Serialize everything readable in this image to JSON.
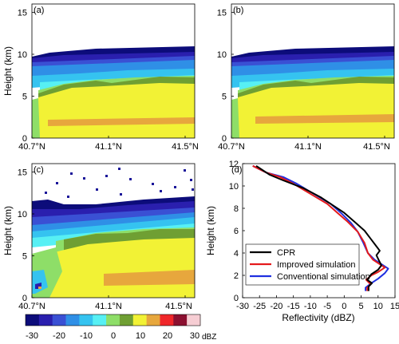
{
  "panels": {
    "a": {
      "label": "(a)"
    },
    "b": {
      "label": "(b)"
    },
    "c": {
      "label": "(c)"
    },
    "d": {
      "label": "(d)"
    }
  },
  "colorbar": {
    "ticks": [
      "-30",
      "-20",
      "-10",
      "0",
      "10",
      "20",
      "30"
    ],
    "unit": "dBZ",
    "levels": [
      -30,
      -25,
      -20,
      -15,
      -10,
      -5,
      0,
      5,
      10,
      15,
      20,
      25,
      30
    ],
    "colors": [
      "#0c0c7a",
      "#2a1fae",
      "#3a50d4",
      "#2f8fe6",
      "#35c3f0",
      "#57f0f4",
      "#8ede68",
      "#6f9f33",
      "#f2f235",
      "#e7a73d",
      "#f0272a",
      "#8b1030",
      "#f6cdd3"
    ]
  },
  "chart_data": [
    {
      "panel": "(a)",
      "type": "heatmap",
      "xlabel": "",
      "ylabel": "Height (km)",
      "xticks": [
        "40.7°N",
        "41.1°N",
        "41.5°N"
      ],
      "yticks": [
        "0",
        "5",
        "10",
        "15"
      ],
      "xlim": [
        40.7,
        41.55
      ],
      "ylim": [
        0,
        16
      ]
    },
    {
      "panel": "(b)",
      "type": "heatmap",
      "xlabel": "",
      "ylabel": "",
      "xticks": [
        "40.7°N",
        "41.1°N",
        "41.5°N"
      ],
      "yticks": [
        "0",
        "5",
        "10",
        "15"
      ],
      "xlim": [
        40.7,
        41.55
      ],
      "ylim": [
        0,
        16
      ]
    },
    {
      "panel": "(c)",
      "type": "heatmap",
      "xlabel": "",
      "ylabel": "Height (km)",
      "xticks": [
        "40.7°N",
        "41.1°N",
        "41.5°N"
      ],
      "yticks": [
        "0",
        "5",
        "10",
        "15"
      ],
      "xlim": [
        40.7,
        41.55
      ],
      "ylim": [
        0,
        16
      ]
    },
    {
      "panel": "(d)",
      "type": "line",
      "xlabel": "Reflectivity (dBZ)",
      "ylabel": "Height (km)",
      "xticks": [
        "-30",
        "-25",
        "-20",
        "-15",
        "-10",
        "-5",
        "0",
        "5",
        "10",
        "15"
      ],
      "yticks": [
        "0",
        "2",
        "4",
        "6",
        "8",
        "10",
        "12"
      ],
      "xlim": [
        -30,
        15
      ],
      "ylim": [
        0,
        12
      ],
      "legend": "bottom-right",
      "series": [
        {
          "name": "CPR",
          "color": "#000000",
          "points": [
            [
              -26,
              11.8
            ],
            [
              -22,
              11.0
            ],
            [
              -18,
              10.5
            ],
            [
              -12,
              9.8
            ],
            [
              -7,
              9.0
            ],
            [
              -3,
              8.2
            ],
            [
              0,
              7.6
            ],
            [
              3,
              6.8
            ],
            [
              6,
              6.0
            ],
            [
              8,
              5.2
            ],
            [
              9.5,
              4.6
            ],
            [
              10.5,
              4.2
            ],
            [
              9.5,
              3.8
            ],
            [
              10.3,
              3.3
            ],
            [
              11,
              2.9
            ],
            [
              10,
              2.5
            ],
            [
              8,
              2.1
            ],
            [
              6.8,
              1.6
            ],
            [
              8.2,
              1.3
            ],
            [
              7.2,
              1.0
            ],
            [
              7.2,
              0.6
            ]
          ]
        },
        {
          "name": "Improved simulation",
          "color": "#e41a1c",
          "points": [
            [
              -27,
              11.8
            ],
            [
              -23,
              11.2
            ],
            [
              -19,
              10.8
            ],
            [
              -15,
              10.2
            ],
            [
              -10,
              9.3
            ],
            [
              -5,
              8.4
            ],
            [
              -2,
              7.6
            ],
            [
              1,
              6.8
            ],
            [
              4,
              5.9
            ],
            [
              6,
              4.9
            ],
            [
              7,
              4.0
            ],
            [
              8.5,
              3.4
            ],
            [
              10.5,
              3.0
            ],
            [
              12,
              2.7
            ],
            [
              10,
              2.3
            ],
            [
              8,
              2.0
            ],
            [
              6.5,
              1.6
            ],
            [
              7.8,
              1.2
            ],
            [
              6.8,
              0.9
            ],
            [
              6.8,
              0.6
            ]
          ]
        },
        {
          "name": "Conventional simulation",
          "color": "#1f2fe0",
          "points": [
            [
              -27,
              11.8
            ],
            [
              -23,
              11.2
            ],
            [
              -18,
              10.8
            ],
            [
              -14,
              10.2
            ],
            [
              -9,
              9.3
            ],
            [
              -4,
              8.4
            ],
            [
              -1,
              7.6
            ],
            [
              2,
              6.7
            ],
            [
              4,
              5.9
            ],
            [
              5.5,
              5.0
            ],
            [
              7,
              4.0
            ],
            [
              9,
              3.4
            ],
            [
              11,
              3.0
            ],
            [
              13,
              2.6
            ],
            [
              12,
              2.2
            ],
            [
              10,
              1.7
            ],
            [
              8,
              1.3
            ],
            [
              6.3,
              0.9
            ],
            [
              6.3,
              0.6
            ]
          ]
        }
      ]
    }
  ]
}
